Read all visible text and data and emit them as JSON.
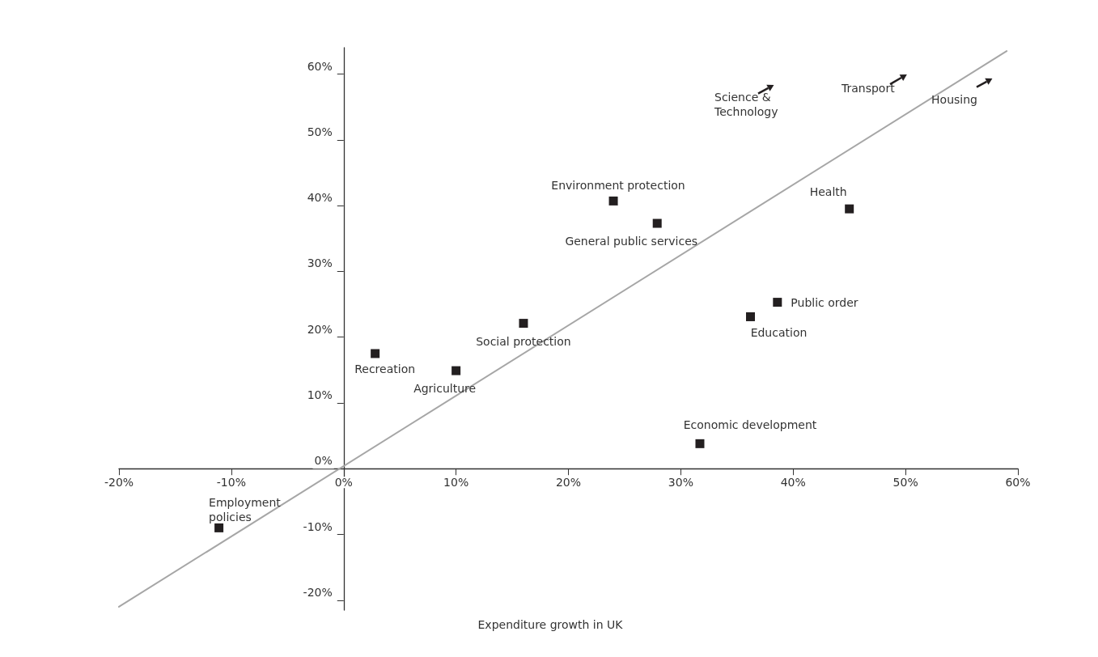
{
  "chart_data": {
    "type": "scatter",
    "xlabel": "Expenditure growth in UK",
    "marker": "square",
    "xlim": [
      -20,
      60
    ],
    "ylim": [
      -21.5,
      64
    ],
    "xticks": [
      {
        "value": -20,
        "label": "-20%"
      },
      {
        "value": -10,
        "label": "-10%"
      },
      {
        "value": 0,
        "label": "0%"
      },
      {
        "value": 10,
        "label": "10%"
      },
      {
        "value": 20,
        "label": "20%"
      },
      {
        "value": 30,
        "label": "30%"
      },
      {
        "value": 40,
        "label": "40%"
      },
      {
        "value": 50,
        "label": "50%"
      },
      {
        "value": 60,
        "label": "60%"
      }
    ],
    "yticks": [
      {
        "value": -20,
        "label": "-20%"
      },
      {
        "value": -10,
        "label": "-10%"
      },
      {
        "value": 0,
        "label": "0%"
      },
      {
        "value": 10,
        "label": "10%"
      },
      {
        "value": 20,
        "label": "20%"
      },
      {
        "value": 30,
        "label": "30%"
      },
      {
        "value": 40,
        "label": "40%"
      },
      {
        "value": 50,
        "label": "50%"
      },
      {
        "value": 60,
        "label": "60%"
      }
    ],
    "series": [
      {
        "name": "Employment policies",
        "color": "#231f20",
        "x": [
          -11.1
        ],
        "values": [
          -9.0
        ]
      },
      {
        "name": "Recreation",
        "color": "#231f20",
        "x": [
          2.8
        ],
        "values": [
          17.5
        ]
      },
      {
        "name": "Agriculture",
        "color": "#231f20",
        "x": [
          10.0
        ],
        "values": [
          14.9
        ]
      },
      {
        "name": "Social protection",
        "color": "#231f20",
        "x": [
          16.0
        ],
        "values": [
          22.1
        ]
      },
      {
        "name": "Environment protection",
        "color": "#231f20",
        "x": [
          24.0
        ],
        "values": [
          40.7
        ]
      },
      {
        "name": "General public services",
        "color": "#231f20",
        "x": [
          27.9
        ],
        "values": [
          37.3
        ]
      },
      {
        "name": "Economic development",
        "color": "#231f20",
        "x": [
          31.7
        ],
        "values": [
          3.8
        ]
      },
      {
        "name": "Education",
        "color": "#231f20",
        "x": [
          36.2
        ],
        "values": [
          23.1
        ]
      },
      {
        "name": "Public order",
        "color": "#231f20",
        "x": [
          38.6
        ],
        "values": [
          25.3
        ]
      },
      {
        "name": "Health",
        "color": "#231f20",
        "x": [
          45.0
        ],
        "values": [
          39.5
        ]
      },
      {
        "type": "line",
        "color": "#a6a6a6",
        "marker": "none",
        "line_style": "solid",
        "x": [
          -20,
          59
        ],
        "values": [
          -21,
          63.5
        ]
      }
    ],
    "annotations": [
      "Science & Technology",
      "Transport",
      "Housing"
    ]
  }
}
